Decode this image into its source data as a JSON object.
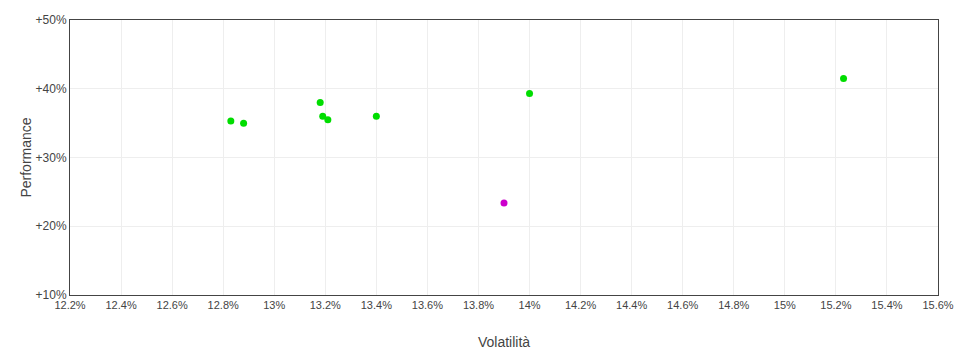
{
  "chart_data": {
    "type": "scatter",
    "xlabel": "Volatilità",
    "ylabel": "Performance",
    "xlim": [
      0.122,
      0.156
    ],
    "ylim": [
      0.1,
      0.5
    ],
    "xticks": [
      {
        "value": 0.122,
        "label": "12.2%"
      },
      {
        "value": 0.124,
        "label": "12.4%"
      },
      {
        "value": 0.126,
        "label": "12.6%"
      },
      {
        "value": 0.128,
        "label": "12.8%"
      },
      {
        "value": 0.13,
        "label": "13%"
      },
      {
        "value": 0.132,
        "label": "13.2%"
      },
      {
        "value": 0.134,
        "label": "13.4%"
      },
      {
        "value": 0.136,
        "label": "13.6%"
      },
      {
        "value": 0.138,
        "label": "13.8%"
      },
      {
        "value": 0.14,
        "label": "14%"
      },
      {
        "value": 0.142,
        "label": "14.2%"
      },
      {
        "value": 0.144,
        "label": "14.4%"
      },
      {
        "value": 0.146,
        "label": "14.6%"
      },
      {
        "value": 0.148,
        "label": "14.8%"
      },
      {
        "value": 0.15,
        "label": "15%"
      },
      {
        "value": 0.152,
        "label": "15.2%"
      },
      {
        "value": 0.154,
        "label": "15.4%"
      },
      {
        "value": 0.156,
        "label": "15.6%"
      }
    ],
    "yticks": [
      {
        "value": 0.1,
        "label": "+10%"
      },
      {
        "value": 0.2,
        "label": "+20%"
      },
      {
        "value": 0.3,
        "label": "+30%"
      },
      {
        "value": 0.4,
        "label": "+40%"
      },
      {
        "value": 0.5,
        "label": "+50%"
      }
    ],
    "grid": true,
    "series": [
      {
        "color": "#00dd00",
        "x": [
          0.1283,
          0.1288,
          0.1318,
          0.1319,
          0.1321,
          0.134,
          0.14,
          0.1523
        ],
        "values": [
          0.353,
          0.35,
          0.38,
          0.36,
          0.355,
          0.36,
          0.393,
          0.415
        ]
      },
      {
        "color": "#cc00cc",
        "x": [
          0.139
        ],
        "values": [
          0.234
        ]
      }
    ]
  }
}
